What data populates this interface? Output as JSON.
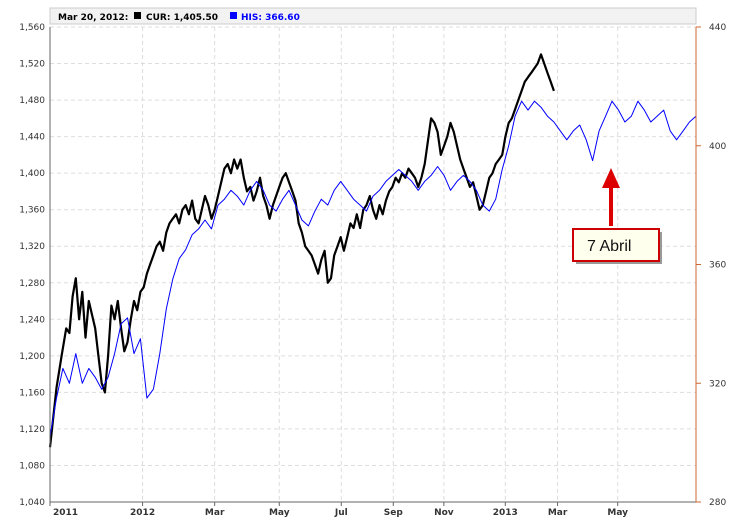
{
  "chart_data": {
    "type": "line",
    "legend": {
      "date": "Mar 20, 2012:",
      "items": [
        {
          "label": "CUR: 1,405.50",
          "color": "#000000"
        },
        {
          "label": "HIS: 366.60",
          "color": "#0000ff"
        }
      ]
    },
    "left_axis": {
      "ylim": [
        1040,
        1560
      ],
      "ticks": [
        "1,560",
        "1,520",
        "1,480",
        "1,440",
        "1,400",
        "1,360",
        "1,320",
        "1,280",
        "1,240",
        "1,200",
        "1,160",
        "1,120",
        "1,080",
        "1,040"
      ],
      "tick_values": [
        1560,
        1520,
        1480,
        1440,
        1400,
        1360,
        1320,
        1280,
        1240,
        1200,
        1160,
        1120,
        1080,
        1040
      ]
    },
    "right_axis": {
      "ylim": [
        280,
        440
      ],
      "ticks": [
        "440",
        "400",
        "360",
        "320",
        "280"
      ],
      "tick_values": [
        440,
        400,
        360,
        320,
        280
      ]
    },
    "x_axis": {
      "ticks": [
        "2011",
        "2012",
        "Mar",
        "May",
        "Jul",
        "Sep",
        "Nov",
        "2013",
        "Mar",
        "May"
      ],
      "tick_positions": [
        0.0,
        0.1433,
        0.2549,
        0.3549,
        0.4509,
        0.5314,
        0.6097,
        0.7048,
        0.7857,
        0.8788
      ]
    },
    "grid": true,
    "series": [
      {
        "name": "CUR",
        "color": "#000000",
        "axis": "left",
        "points": [
          [
            0.0,
            1100
          ],
          [
            0.01,
            1165
          ],
          [
            0.018,
            1200
          ],
          [
            0.025,
            1230
          ],
          [
            0.03,
            1225
          ],
          [
            0.035,
            1265
          ],
          [
            0.04,
            1285
          ],
          [
            0.045,
            1240
          ],
          [
            0.05,
            1270
          ],
          [
            0.055,
            1220
          ],
          [
            0.06,
            1260
          ],
          [
            0.065,
            1245
          ],
          [
            0.07,
            1230
          ],
          [
            0.075,
            1200
          ],
          [
            0.08,
            1170
          ],
          [
            0.085,
            1160
          ],
          [
            0.09,
            1200
          ],
          [
            0.095,
            1255
          ],
          [
            0.1,
            1240
          ],
          [
            0.105,
            1260
          ],
          [
            0.11,
            1230
          ],
          [
            0.115,
            1205
          ],
          [
            0.12,
            1215
          ],
          [
            0.125,
            1240
          ],
          [
            0.13,
            1260
          ],
          [
            0.135,
            1250
          ],
          [
            0.14,
            1270
          ],
          [
            0.145,
            1275
          ],
          [
            0.15,
            1290
          ],
          [
            0.155,
            1300
          ],
          [
            0.16,
            1310
          ],
          [
            0.165,
            1320
          ],
          [
            0.17,
            1325
          ],
          [
            0.175,
            1315
          ],
          [
            0.18,
            1335
          ],
          [
            0.185,
            1345
          ],
          [
            0.19,
            1350
          ],
          [
            0.195,
            1355
          ],
          [
            0.2,
            1345
          ],
          [
            0.205,
            1360
          ],
          [
            0.21,
            1365
          ],
          [
            0.215,
            1355
          ],
          [
            0.22,
            1370
          ],
          [
            0.225,
            1350
          ],
          [
            0.23,
            1345
          ],
          [
            0.235,
            1360
          ],
          [
            0.24,
            1375
          ],
          [
            0.245,
            1365
          ],
          [
            0.25,
            1350
          ],
          [
            0.255,
            1360
          ],
          [
            0.26,
            1375
          ],
          [
            0.265,
            1390
          ],
          [
            0.27,
            1405
          ],
          [
            0.275,
            1410
          ],
          [
            0.28,
            1400
          ],
          [
            0.285,
            1415
          ],
          [
            0.29,
            1405
          ],
          [
            0.295,
            1415
          ],
          [
            0.3,
            1395
          ],
          [
            0.305,
            1380
          ],
          [
            0.31,
            1385
          ],
          [
            0.315,
            1370
          ],
          [
            0.32,
            1380
          ],
          [
            0.325,
            1395
          ],
          [
            0.33,
            1375
          ],
          [
            0.335,
            1365
          ],
          [
            0.34,
            1350
          ],
          [
            0.345,
            1365
          ],
          [
            0.35,
            1375
          ],
          [
            0.355,
            1385
          ],
          [
            0.36,
            1395
          ],
          [
            0.365,
            1400
          ],
          [
            0.37,
            1390
          ],
          [
            0.375,
            1380
          ],
          [
            0.38,
            1370
          ],
          [
            0.385,
            1345
          ],
          [
            0.39,
            1335
          ],
          [
            0.395,
            1320
          ],
          [
            0.4,
            1315
          ],
          [
            0.405,
            1310
          ],
          [
            0.41,
            1300
          ],
          [
            0.415,
            1290
          ],
          [
            0.42,
            1305
          ],
          [
            0.425,
            1315
          ],
          [
            0.43,
            1280
          ],
          [
            0.435,
            1285
          ],
          [
            0.44,
            1310
          ],
          [
            0.445,
            1320
          ],
          [
            0.45,
            1330
          ],
          [
            0.455,
            1315
          ],
          [
            0.46,
            1330
          ],
          [
            0.465,
            1345
          ],
          [
            0.47,
            1340
          ],
          [
            0.475,
            1355
          ],
          [
            0.48,
            1340
          ],
          [
            0.485,
            1360
          ],
          [
            0.49,
            1365
          ],
          [
            0.495,
            1375
          ],
          [
            0.5,
            1360
          ],
          [
            0.505,
            1350
          ],
          [
            0.51,
            1365
          ],
          [
            0.515,
            1355
          ],
          [
            0.52,
            1370
          ],
          [
            0.525,
            1380
          ],
          [
            0.53,
            1385
          ],
          [
            0.535,
            1395
          ],
          [
            0.54,
            1390
          ],
          [
            0.545,
            1400
          ],
          [
            0.55,
            1395
          ],
          [
            0.555,
            1405
          ],
          [
            0.56,
            1400
          ],
          [
            0.565,
            1395
          ],
          [
            0.57,
            1385
          ],
          [
            0.575,
            1395
          ],
          [
            0.58,
            1410
          ],
          [
            0.585,
            1435
          ],
          [
            0.59,
            1460
          ],
          [
            0.595,
            1455
          ],
          [
            0.6,
            1445
          ],
          [
            0.605,
            1420
          ],
          [
            0.61,
            1430
          ],
          [
            0.615,
            1440
          ],
          [
            0.62,
            1455
          ],
          [
            0.625,
            1445
          ],
          [
            0.63,
            1430
          ],
          [
            0.635,
            1415
          ],
          [
            0.64,
            1405
          ],
          [
            0.645,
            1395
          ],
          [
            0.65,
            1385
          ],
          [
            0.655,
            1390
          ],
          [
            0.66,
            1375
          ],
          [
            0.665,
            1360
          ],
          [
            0.67,
            1365
          ],
          [
            0.675,
            1380
          ],
          [
            0.68,
            1395
          ],
          [
            0.685,
            1400
          ],
          [
            0.69,
            1410
          ],
          [
            0.695,
            1415
          ],
          [
            0.7,
            1420
          ],
          [
            0.705,
            1440
          ],
          [
            0.71,
            1455
          ],
          [
            0.715,
            1460
          ],
          [
            0.72,
            1470
          ],
          [
            0.725,
            1480
          ],
          [
            0.73,
            1490
          ],
          [
            0.735,
            1500
          ],
          [
            0.74,
            1505
          ],
          [
            0.745,
            1510
          ],
          [
            0.75,
            1515
          ],
          [
            0.755,
            1520
          ],
          [
            0.76,
            1530
          ],
          [
            0.765,
            1520
          ],
          [
            0.77,
            1510
          ],
          [
            0.775,
            1500
          ],
          [
            0.78,
            1490
          ]
        ]
      },
      {
        "name": "HIS",
        "color": "#0000ff",
        "axis": "right",
        "points": [
          [
            0.0,
            302
          ],
          [
            0.01,
            315
          ],
          [
            0.02,
            325
          ],
          [
            0.03,
            320
          ],
          [
            0.04,
            330
          ],
          [
            0.05,
            320
          ],
          [
            0.06,
            325
          ],
          [
            0.07,
            322
          ],
          [
            0.08,
            318
          ],
          [
            0.09,
            322
          ],
          [
            0.1,
            330
          ],
          [
            0.11,
            340
          ],
          [
            0.12,
            342
          ],
          [
            0.13,
            330
          ],
          [
            0.14,
            335
          ],
          [
            0.15,
            315
          ],
          [
            0.16,
            318
          ],
          [
            0.17,
            330
          ],
          [
            0.18,
            345
          ],
          [
            0.19,
            355
          ],
          [
            0.2,
            362
          ],
          [
            0.21,
            365
          ],
          [
            0.22,
            370
          ],
          [
            0.23,
            372
          ],
          [
            0.24,
            375
          ],
          [
            0.25,
            372
          ],
          [
            0.26,
            380
          ],
          [
            0.27,
            382
          ],
          [
            0.28,
            385
          ],
          [
            0.29,
            383
          ],
          [
            0.3,
            380
          ],
          [
            0.31,
            385
          ],
          [
            0.32,
            388
          ],
          [
            0.33,
            385
          ],
          [
            0.34,
            380
          ],
          [
            0.35,
            378
          ],
          [
            0.36,
            382
          ],
          [
            0.37,
            385
          ],
          [
            0.38,
            380
          ],
          [
            0.39,
            375
          ],
          [
            0.4,
            373
          ],
          [
            0.41,
            378
          ],
          [
            0.42,
            382
          ],
          [
            0.43,
            380
          ],
          [
            0.44,
            385
          ],
          [
            0.45,
            388
          ],
          [
            0.46,
            385
          ],
          [
            0.47,
            382
          ],
          [
            0.48,
            380
          ],
          [
            0.49,
            378
          ],
          [
            0.5,
            383
          ],
          [
            0.51,
            385
          ],
          [
            0.52,
            388
          ],
          [
            0.53,
            390
          ],
          [
            0.54,
            392
          ],
          [
            0.55,
            390
          ],
          [
            0.56,
            388
          ],
          [
            0.57,
            385
          ],
          [
            0.58,
            388
          ],
          [
            0.59,
            390
          ],
          [
            0.6,
            393
          ],
          [
            0.61,
            390
          ],
          [
            0.62,
            385
          ],
          [
            0.63,
            388
          ],
          [
            0.64,
            390
          ],
          [
            0.65,
            388
          ],
          [
            0.66,
            385
          ],
          [
            0.67,
            380
          ],
          [
            0.68,
            378
          ],
          [
            0.69,
            382
          ],
          [
            0.7,
            392
          ],
          [
            0.71,
            400
          ],
          [
            0.72,
            410
          ],
          [
            0.73,
            415
          ],
          [
            0.74,
            412
          ],
          [
            0.75,
            415
          ],
          [
            0.76,
            413
          ],
          [
            0.77,
            410
          ],
          [
            0.78,
            408
          ],
          [
            0.79,
            405
          ],
          [
            0.8,
            402
          ],
          [
            0.81,
            405
          ],
          [
            0.82,
            407
          ],
          [
            0.83,
            402
          ],
          [
            0.84,
            395
          ],
          [
            0.85,
            405
          ],
          [
            0.86,
            410
          ],
          [
            0.87,
            415
          ],
          [
            0.88,
            412
          ],
          [
            0.89,
            408
          ],
          [
            0.9,
            410
          ],
          [
            0.91,
            415
          ],
          [
            0.92,
            412
          ],
          [
            0.93,
            408
          ],
          [
            0.94,
            410
          ],
          [
            0.95,
            412
          ],
          [
            0.96,
            405
          ],
          [
            0.97,
            402
          ],
          [
            0.98,
            405
          ],
          [
            0.99,
            408
          ],
          [
            1.0,
            410
          ]
        ]
      }
    ],
    "annotation": {
      "label": "7 Abril"
    }
  }
}
